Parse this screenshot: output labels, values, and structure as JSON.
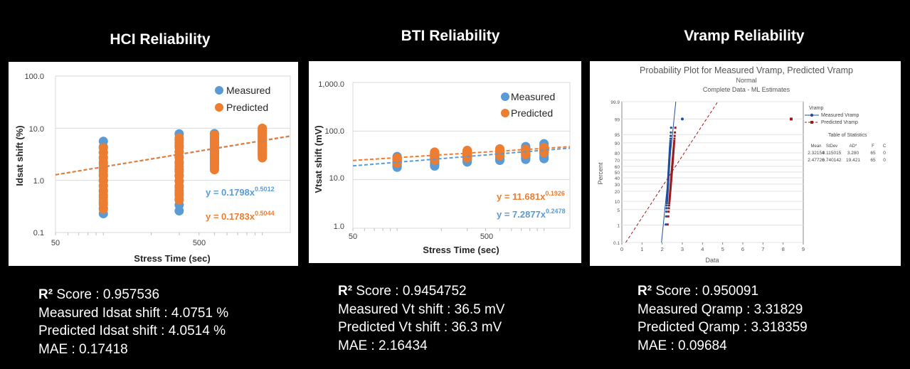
{
  "panels": [
    {
      "title": "HCI Reliability",
      "stats": {
        "r2_symbol": "R²",
        "r2_label": "Score : 0.957536",
        "line2": "Measured Idsat shift : 4.0751 %",
        "line3": "Predicted Idsat shift : 4.0514 %",
        "line4": "MAE : 0.17418"
      }
    },
    {
      "title": "BTI Reliability",
      "stats": {
        "r2_symbol": "R²",
        "r2_label": "Score :  0.9454752",
        "line2": "Measured Vt shift : 36.5 mV",
        "line3": "Predicted Vt shift : 36.3 mV",
        "line4": "MAE : 2.16434"
      }
    },
    {
      "title": "Vramp Reliability",
      "stats": {
        "r2_symbol": "R²",
        "r2_label": "Score :  0.950091",
        "line2": "Measured Qramp : 3.31829",
        "line3": "Predicted Qramp : 3.318359",
        "line4": "MAE : 0.09684"
      }
    }
  ],
  "colors": {
    "measured": "#5B9BD5",
    "predicted": "#ED7D31",
    "vramp_measured": "#1F4E9C",
    "vramp_predicted": "#9B1C1C"
  },
  "chart_data": [
    {
      "type": "scatter",
      "title": "HCI Reliability",
      "xlabel": "Stress Time (sec)",
      "ylabel": "Idsat shift (%)",
      "xscale": "log",
      "yscale": "log",
      "xlim": [
        50,
        1500
      ],
      "ylim": [
        0.1,
        100
      ],
      "xtick_labels": [
        "50",
        "500"
      ],
      "ytick_labels": [
        "0.1",
        "1.0",
        "10.0",
        "100.0"
      ],
      "legend": [
        "Measured",
        "Predicted"
      ],
      "legend_position": "top-right",
      "x": [
        100,
        300,
        500,
        1000
      ],
      "series": [
        {
          "name": "Measured",
          "min": [
            0.23,
            0.26,
            1.7,
            3.0
          ],
          "max": [
            5.6,
            7.8,
            7.9,
            9.5
          ]
        },
        {
          "name": "Predicted",
          "min": [
            0.28,
            0.42,
            1.6,
            2.7
          ],
          "max": [
            4.2,
            6.5,
            7.5,
            10.0
          ]
        }
      ],
      "fits": [
        {
          "name": "Measured",
          "equation": "y = 0.1798x",
          "exponent": "0.5012",
          "a": 0.1798,
          "b": 0.5012
        },
        {
          "name": "Predicted",
          "equation": "y = 0.1783x",
          "exponent": "0.5044",
          "a": 0.1783,
          "b": 0.5044
        }
      ]
    },
    {
      "type": "scatter",
      "title": "BTI Reliability",
      "xlabel": "Stress Time (sec)",
      "ylabel": "Vtsat shift (mV)",
      "xscale": "log",
      "yscale": "log",
      "xlim": [
        50,
        1500
      ],
      "ylim": [
        1,
        1000
      ],
      "xtick_labels": [
        "50",
        "500"
      ],
      "ytick_labels": [
        "1.0",
        "10.0",
        "100.0",
        "1,000.0"
      ],
      "legend": [
        "Measured",
        "Predicted"
      ],
      "legend_position": "top-right",
      "x": [
        100,
        180,
        300,
        500,
        750,
        1000
      ],
      "series": [
        {
          "name": "Measured",
          "min": [
            18,
            19,
            23,
            25,
            26,
            27
          ],
          "max": [
            30,
            34,
            37,
            42,
            48,
            55
          ]
        },
        {
          "name": "Predicted",
          "min": [
            22,
            25,
            28,
            31,
            33,
            36
          ],
          "max": [
            28,
            37,
            40,
            43,
            42,
            46
          ]
        }
      ],
      "fits": [
        {
          "name": "Predicted",
          "equation": "y = 11.681x",
          "exponent": "0.1926",
          "a": 11.681,
          "b": 0.1926
        },
        {
          "name": "Measured",
          "equation": "y = 7.2877x",
          "exponent": "0.2478",
          "a": 7.2877,
          "b": 0.2478
        }
      ]
    },
    {
      "type": "scatter",
      "title": "Probability Plot for Measured Vramp, Predicted Vramp",
      "subtitle1": "Normal",
      "subtitle2": "Complete Data - ML Estimates",
      "xlabel": "Data",
      "ylabel": "Percent",
      "xlim": [
        0,
        9
      ],
      "xtick_labels": [
        "0",
        "1",
        "2",
        "3",
        "4",
        "5",
        "6",
        "7",
        "8",
        "9"
      ],
      "ytick_labels": [
        "0.1",
        "1",
        "5",
        "10",
        "20",
        "30",
        "40",
        "50",
        "60",
        "70",
        "80",
        "90",
        "95",
        "99",
        "99.9"
      ],
      "legend_title": "Vramp",
      "legend": [
        "Measured Vramp",
        "Predicted Vramp"
      ],
      "legend_position": "right",
      "stats_table": {
        "title": "Table of Statistics",
        "headers": [
          "Mean",
          "StDev",
          "AD*",
          "F",
          "C"
        ],
        "rows": [
          [
            "2.32154",
            "0.115015",
            "3.280",
            "65",
            "0"
          ],
          [
            "2.47726",
            "0.740142",
            "19.421",
            "65",
            "0"
          ]
        ]
      },
      "series": [
        {
          "name": "Measured Vramp",
          "mean": 2.32154,
          "stdev": 0.115015,
          "n": 65,
          "outlier": [
            3.0,
            99
          ]
        },
        {
          "name": "Predicted Vramp",
          "mean": 2.47726,
          "stdev": 0.740142,
          "n": 65,
          "outlier": [
            8.4,
            99
          ]
        }
      ]
    }
  ]
}
